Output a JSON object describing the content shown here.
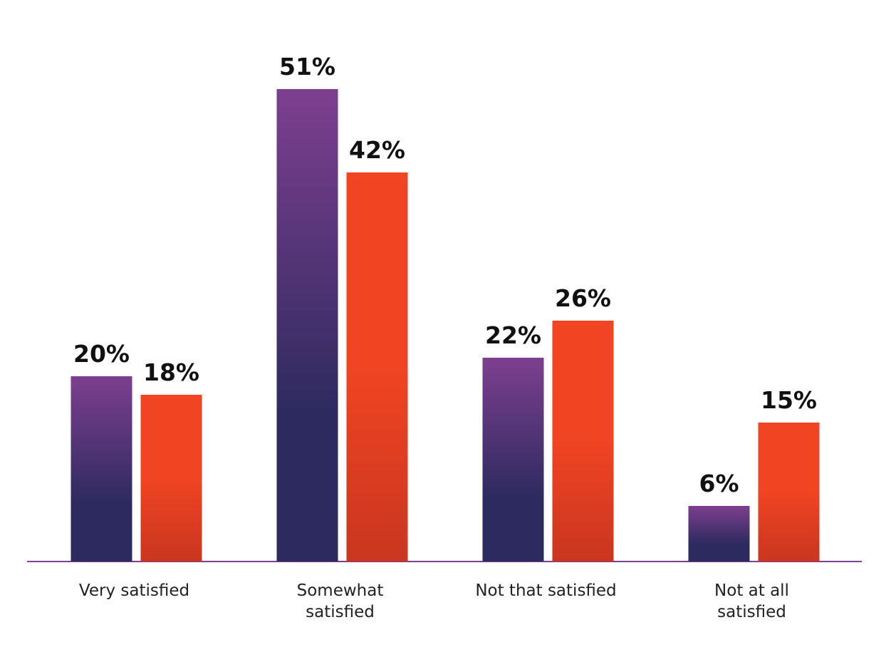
{
  "chart_data": {
    "type": "bar",
    "categories": [
      "Very satisfied",
      "Somewhat satisfied",
      "Not that satisfied",
      "Not at all satisfied"
    ],
    "series": [
      {
        "color": "#7d3f8f",
        "values": [
          20,
          51,
          22,
          6
        ],
        "value_labels": [
          "20%",
          "51%",
          "22%",
          "6%"
        ]
      },
      {
        "color": "#f04423",
        "values": [
          18,
          42,
          26,
          15
        ],
        "value_labels": [
          "18%",
          "42%",
          "26%",
          "15%"
        ]
      }
    ]
  }
}
